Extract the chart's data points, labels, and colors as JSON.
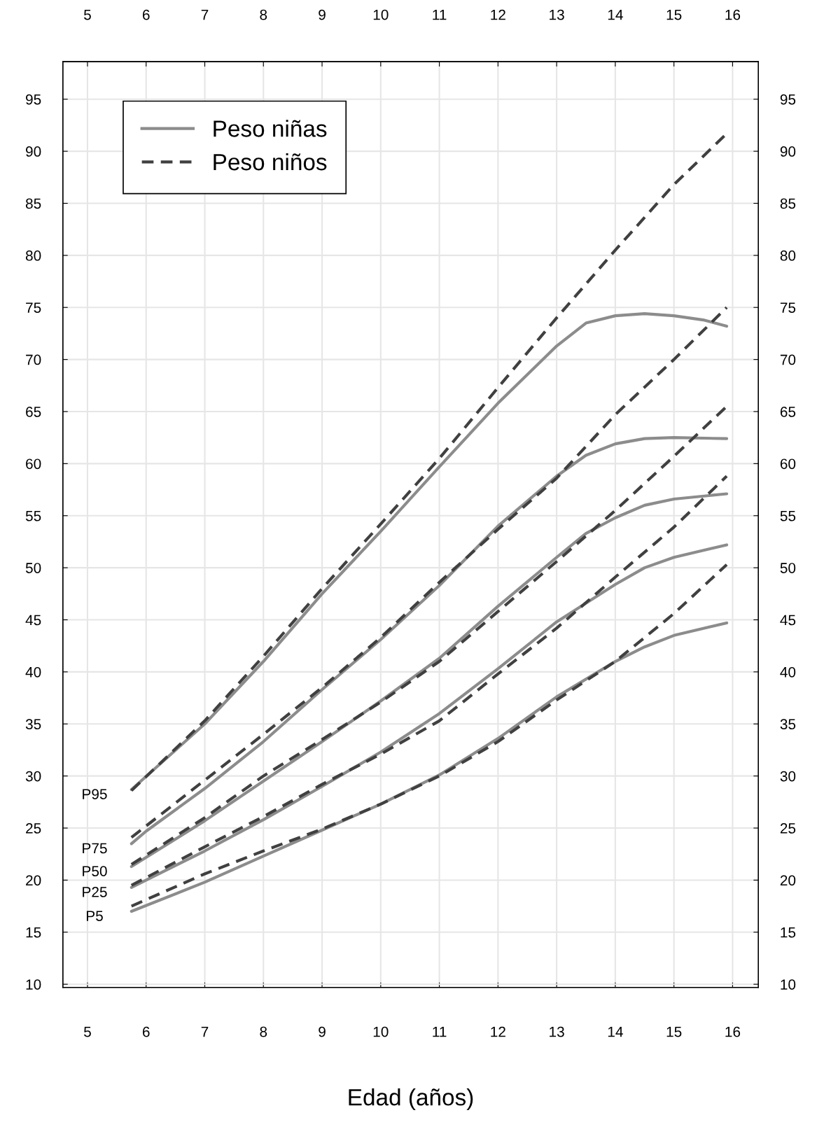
{
  "chart_data": {
    "type": "line",
    "xlabel": "Edad (años)",
    "legend": "top left",
    "grid": true,
    "xlim": [
      4.58,
      16.44
    ],
    "xticks": [
      5,
      6,
      7,
      8,
      9,
      10,
      11,
      12,
      13,
      14,
      15,
      16
    ],
    "x2lim": [
      4.58,
      16.44
    ],
    "x2ticks": [
      5,
      6,
      7,
      8,
      9,
      10,
      11,
      12,
      13,
      14,
      15,
      16
    ],
    "ylim": [
      9.7,
      98.6
    ],
    "yticks": [
      10,
      15,
      20,
      25,
      30,
      35,
      40,
      45,
      50,
      55,
      60,
      65,
      70,
      75,
      80,
      85,
      90,
      95
    ],
    "y2lim": [
      9.7,
      98.6
    ],
    "y2ticks": [
      10,
      15,
      20,
      25,
      30,
      35,
      40,
      45,
      50,
      55,
      60,
      65,
      70,
      75,
      80,
      85,
      90,
      95
    ],
    "series": [
      {
        "name": "Peso niñas",
        "color": "#8c8c8c",
        "line_style": "solid",
        "x": [
          5.75,
          7,
          8,
          9,
          10,
          11,
          12,
          13,
          13.5,
          14,
          14.5,
          15,
          15.5,
          15.9
        ],
        "values": [
          28.7,
          35,
          41,
          47.5,
          53.5,
          59.7,
          65.8,
          71.3,
          73.5,
          74.2,
          74.4,
          74.2,
          73.8,
          73.2
        ]
      },
      {
        "color": "#8c8c8c",
        "line_style": "solid",
        "x": [
          5.75,
          6,
          7,
          8,
          9,
          10,
          11,
          12,
          13,
          13.5,
          14,
          14.5,
          15,
          15.9
        ],
        "values": [
          23.5,
          24.7,
          28.8,
          33.3,
          38.3,
          43.1,
          48.3,
          54,
          58.8,
          60.8,
          61.9,
          62.4,
          62.5,
          62.4
        ]
      },
      {
        "color": "#8c8c8c",
        "line_style": "solid",
        "x": [
          5.75,
          7,
          8,
          9,
          10,
          11,
          12,
          13,
          13.5,
          14,
          14.5,
          15,
          15.9
        ],
        "values": [
          21.3,
          25.7,
          29.5,
          33.3,
          37.2,
          41.3,
          46.3,
          51,
          53.3,
          54.8,
          56,
          56.6,
          57.1
        ]
      },
      {
        "color": "#8c8c8c",
        "line_style": "solid",
        "x": [
          5.75,
          7,
          8,
          9,
          10,
          11,
          12,
          13,
          14,
          14.5,
          15,
          15.9
        ],
        "values": [
          19.3,
          22.8,
          25.8,
          29,
          32.3,
          36,
          40.3,
          44.8,
          48.4,
          50,
          51,
          52.2
        ]
      },
      {
        "color": "#8c8c8c",
        "line_style": "solid",
        "x": [
          5.75,
          7,
          8,
          9,
          10,
          11,
          12,
          13,
          14,
          14.5,
          15,
          15.9
        ],
        "values": [
          17,
          19.8,
          22.3,
          24.8,
          27.3,
          30.1,
          33.6,
          37.6,
          41,
          42.4,
          43.5,
          44.7
        ]
      },
      {
        "name": "Peso niños",
        "color": "#404040",
        "line_style": "dashed",
        "x": [
          5.75,
          7,
          8,
          9,
          10,
          11,
          12,
          13,
          14,
          15,
          15.9
        ],
        "values": [
          28.6,
          35.3,
          41.5,
          48,
          54.2,
          60.5,
          67.3,
          74,
          80.5,
          86.8,
          91.7
        ]
      },
      {
        "color": "#404040",
        "line_style": "dashed",
        "x": [
          5.75,
          7,
          8,
          9,
          10,
          11,
          12,
          13,
          14,
          15,
          15.9
        ],
        "values": [
          24.1,
          29.6,
          34,
          38.5,
          43.3,
          48.6,
          53.7,
          58.6,
          64.7,
          70,
          75
        ]
      },
      {
        "color": "#404040",
        "line_style": "dashed",
        "x": [
          5.75,
          7,
          8,
          9,
          10,
          11,
          12,
          13,
          14,
          15,
          15.9
        ],
        "values": [
          21.5,
          26,
          30,
          33.5,
          37.1,
          41,
          45.8,
          50.6,
          55.5,
          60.7,
          65.5
        ]
      },
      {
        "color": "#404040",
        "line_style": "dashed",
        "x": [
          5.75,
          7,
          8,
          9,
          10,
          11,
          12,
          13,
          14,
          15,
          15.9
        ],
        "values": [
          19.5,
          23.2,
          26.1,
          29.2,
          32.1,
          35.3,
          39.8,
          44.2,
          49.1,
          53.9,
          58.8
        ]
      },
      {
        "color": "#404040",
        "line_style": "dashed",
        "x": [
          5.75,
          7,
          8,
          9,
          10,
          11,
          12,
          13,
          14,
          15,
          15.9
        ],
        "values": [
          17.5,
          20.6,
          22.8,
          24.9,
          27.3,
          30,
          33.3,
          37.3,
          41,
          45.6,
          50.3
        ]
      }
    ],
    "annotations": [
      "P95",
      "P75",
      "P50",
      "P25",
      "P5"
    ]
  }
}
